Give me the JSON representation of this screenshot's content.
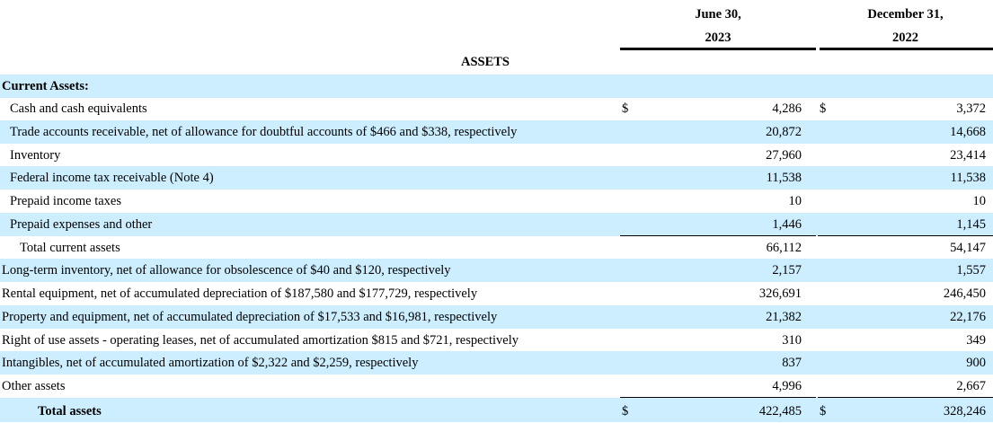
{
  "header": {
    "col1_line1": "June 30,",
    "col1_line2": "2023",
    "col2_line1": "December 31,",
    "col2_line2": "2022"
  },
  "section_title": "ASSETS",
  "current_assets_heading": "Current Assets:",
  "currency_symbol": "$",
  "rows": [
    {
      "label": "Cash and cash equivalents",
      "v1": "4,286",
      "v2": "3,372"
    },
    {
      "label": "Trade accounts receivable, net of allowance for doubtful accounts of $466 and $338, respectively",
      "v1": "20,872",
      "v2": "14,668"
    },
    {
      "label": "Inventory",
      "v1": "27,960",
      "v2": "23,414"
    },
    {
      "label": "Federal income tax receivable (Note 4)",
      "v1": "11,538",
      "v2": "11,538"
    },
    {
      "label": "Prepaid income taxes",
      "v1": "10",
      "v2": "10"
    },
    {
      "label": "Prepaid expenses and other",
      "v1": "1,446",
      "v2": "1,145"
    },
    {
      "label": "Total current assets",
      "v1": "66,112",
      "v2": "54,147"
    },
    {
      "label": "Long-term inventory, net of allowance for obsolescence of $40 and $120, respectively",
      "v1": "2,157",
      "v2": "1,557"
    },
    {
      "label": "Rental equipment, net of accumulated depreciation of $187,580 and $177,729, respectively",
      "v1": "326,691",
      "v2": "246,450"
    },
    {
      "label": "Property and equipment, net of accumulated depreciation of $17,533 and $16,981, respectively",
      "v1": "21,382",
      "v2": "22,176"
    },
    {
      "label": "Right of use assets - operating leases, net of accumulated amortization $815 and $721, respectively",
      "v1": "310",
      "v2": "349"
    },
    {
      "label": "Intangibles, net of accumulated amortization of $2,322 and $2,259, respectively",
      "v1": "837",
      "v2": "900"
    },
    {
      "label": "Other assets",
      "v1": "4,996",
      "v2": "2,667"
    },
    {
      "label": "Total assets",
      "v1": "422,485",
      "v2": "328,246"
    }
  ]
}
